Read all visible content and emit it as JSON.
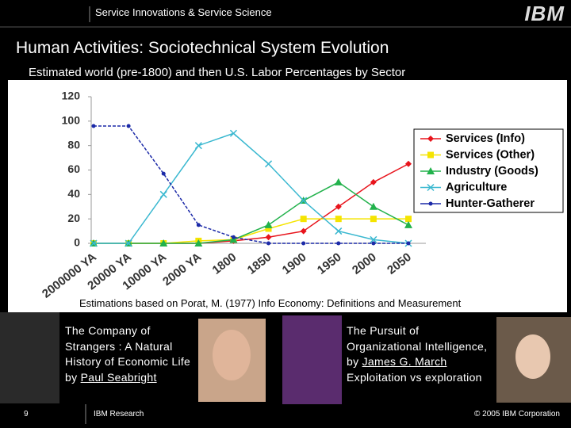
{
  "header": "Service Innovations & Service Science",
  "logo": "IBM",
  "title": "Human Activities: Sociotechnical System Evolution",
  "subtitle": "Estimated world (pre-1800) and then U.S. Labor Percentages by Sector",
  "chart_data": {
    "type": "line",
    "categories": [
      "2000000 YA",
      "20000 YA",
      "10000 YA",
      "2000 YA",
      "1800",
      "1850",
      "1900",
      "1950",
      "2000",
      "2050"
    ],
    "series": [
      {
        "name": "Services (Info)",
        "color": "#e8141c",
        "marker": "diamond",
        "values": [
          0,
          0,
          0,
          0,
          2,
          5,
          10,
          30,
          50,
          65
        ]
      },
      {
        "name": "Services (Other)",
        "color": "#f5e400",
        "marker": "square",
        "values": [
          0,
          0,
          0,
          2,
          3,
          12,
          20,
          20,
          20,
          20
        ]
      },
      {
        "name": "Industry (Goods)",
        "color": "#22b24c",
        "marker": "triangle",
        "values": [
          0,
          0,
          0,
          0,
          3,
          15,
          35,
          50,
          30,
          15
        ]
      },
      {
        "name": "Agriculture",
        "color": "#3ab8d0",
        "marker": "x",
        "values": [
          0,
          0,
          40,
          80,
          90,
          65,
          35,
          10,
          3,
          0
        ]
      },
      {
        "name": "Hunter-Gatherer",
        "color": "#1c2aa8",
        "marker": "circle",
        "values": [
          96,
          96,
          57,
          15,
          5,
          0,
          0,
          0,
          0,
          0
        ]
      }
    ],
    "ylim": [
      0,
      120
    ],
    "yticks": [
      0,
      20,
      40,
      60,
      80,
      100,
      120
    ],
    "legend": "right",
    "note": "Estimations based on Porat, M. (1977) Info Economy: Definitions and Measurement"
  },
  "books": [
    {
      "title": "The Company of Strangers : A Natural History of Economic Life",
      "by": "by",
      "author": "Paul Seabright"
    },
    {
      "title": "The Pursuit of Organizational Intelligence,",
      "by": "by",
      "author": "James G. March",
      "note": "Exploitation vs exploration"
    }
  ],
  "footer": {
    "page": "9",
    "left": "IBM Research",
    "right": "© 2005 IBM Corporation"
  }
}
